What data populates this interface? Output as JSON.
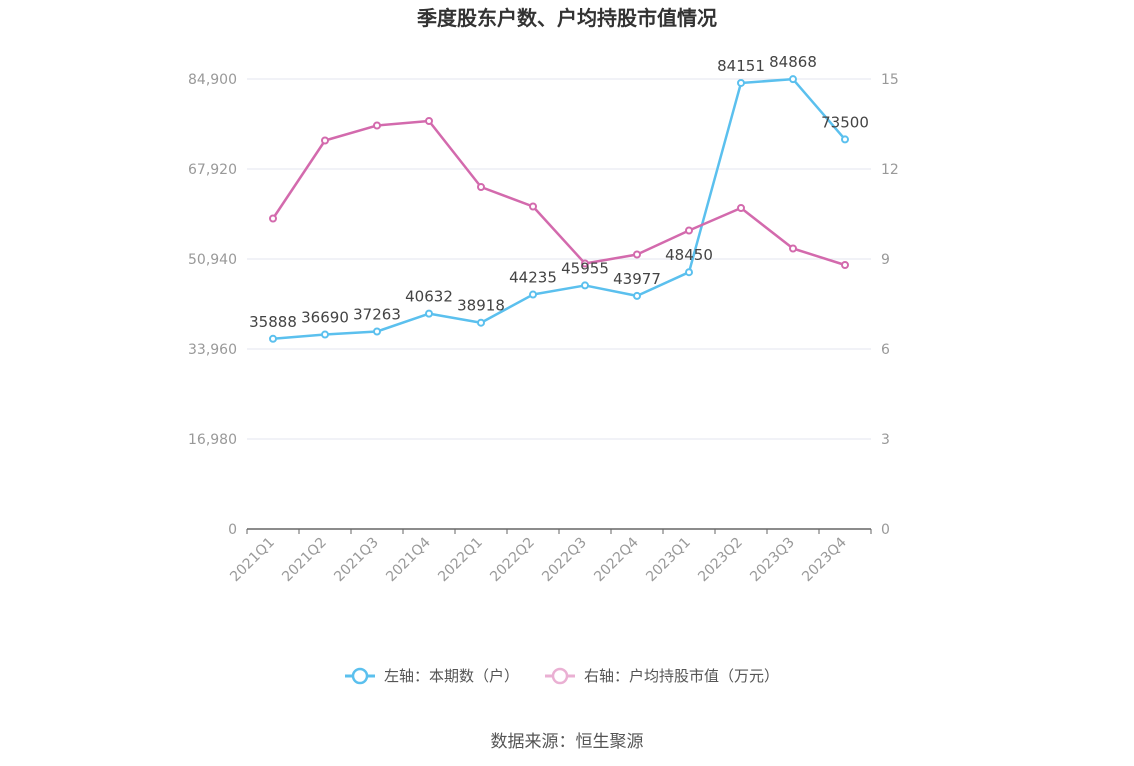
{
  "chart_data": {
    "type": "line",
    "title": "季度股东户数、户均持股市值情况",
    "categories": [
      "2021Q1",
      "2021Q2",
      "2021Q3",
      "2021Q4",
      "2022Q1",
      "2022Q2",
      "2022Q3",
      "2022Q4",
      "2023Q1",
      "2023Q2",
      "2023Q3",
      "2023Q4"
    ],
    "left_axis": {
      "ticks": [
        "0",
        "16,980",
        "33,960",
        "50,940",
        "67,920",
        "84,900"
      ],
      "ylim": [
        0,
        84900
      ]
    },
    "right_axis": {
      "ticks": [
        "0",
        "3",
        "6",
        "9",
        "12",
        "15"
      ],
      "ylim": [
        0,
        15
      ]
    },
    "series": [
      {
        "name": "左轴：本期数（户）",
        "axis": "left",
        "color": "#5bc0ee",
        "values": [
          35888,
          36690,
          37263,
          40632,
          38918,
          44235,
          45955,
          43977,
          48450,
          84151,
          84868,
          73500
        ],
        "labels": [
          "35888",
          "36690",
          "37263",
          "40632",
          "38918",
          "44235",
          "45955",
          "43977",
          "48450",
          "84151",
          "84868",
          "73500"
        ]
      },
      {
        "name": "右轴：户均持股市值（万元）",
        "axis": "right",
        "color": "#d36aad",
        "values": [
          10.35,
          12.95,
          13.45,
          13.6,
          11.4,
          10.75,
          8.85,
          9.15,
          9.95,
          10.7,
          9.35,
          8.8
        ]
      }
    ],
    "legend_position": "bottom",
    "grid": true
  },
  "source": "数据来源：恒生聚源"
}
